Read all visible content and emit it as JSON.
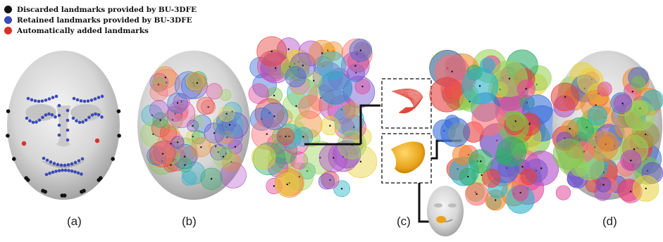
{
  "legend": {
    "items": [
      {
        "label": "Discarded landmarks provided by BU-3DFE",
        "color": "#111111"
      },
      {
        "label": "Retained landmarks provided by BU-3DFE",
        "color": "#3b4bb5"
      },
      {
        "label": "Automatically added landmarks",
        "color": "#d9302a"
      }
    ]
  },
  "panels": {
    "a": "(a)",
    "b": "(b)",
    "c": "(c)",
    "d": "(d)"
  },
  "palette": [
    "#e6403a",
    "#f08a2c",
    "#e8d23a",
    "#7cc446",
    "#2fae6a",
    "#2ab3c8",
    "#3a6fd8",
    "#6a4fd0",
    "#b04cc8",
    "#e04a9a",
    "#9bd45a",
    "#ff6f6f"
  ]
}
